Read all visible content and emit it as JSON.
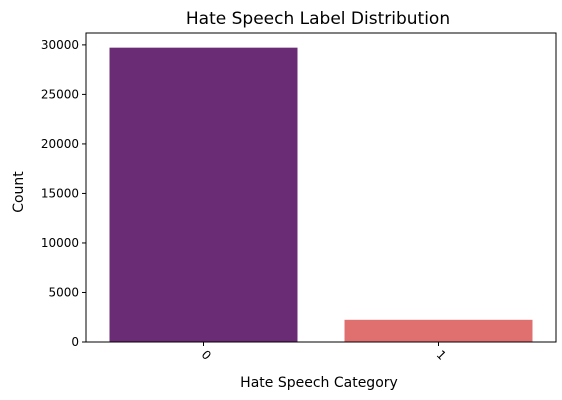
{
  "chart_data": {
    "type": "bar",
    "title": "Hate Speech Label Distribution",
    "xlabel": "Hate Speech Category",
    "ylabel": "Count",
    "categories": [
      "0",
      "1"
    ],
    "values": [
      29720,
      2242
    ],
    "colors": [
      "#6a2c75",
      "#e07070"
    ],
    "ylim": [
      0,
      31200
    ],
    "yticks": [
      0,
      5000,
      10000,
      15000,
      20000,
      25000,
      30000
    ],
    "grid": false,
    "legend": "none"
  }
}
